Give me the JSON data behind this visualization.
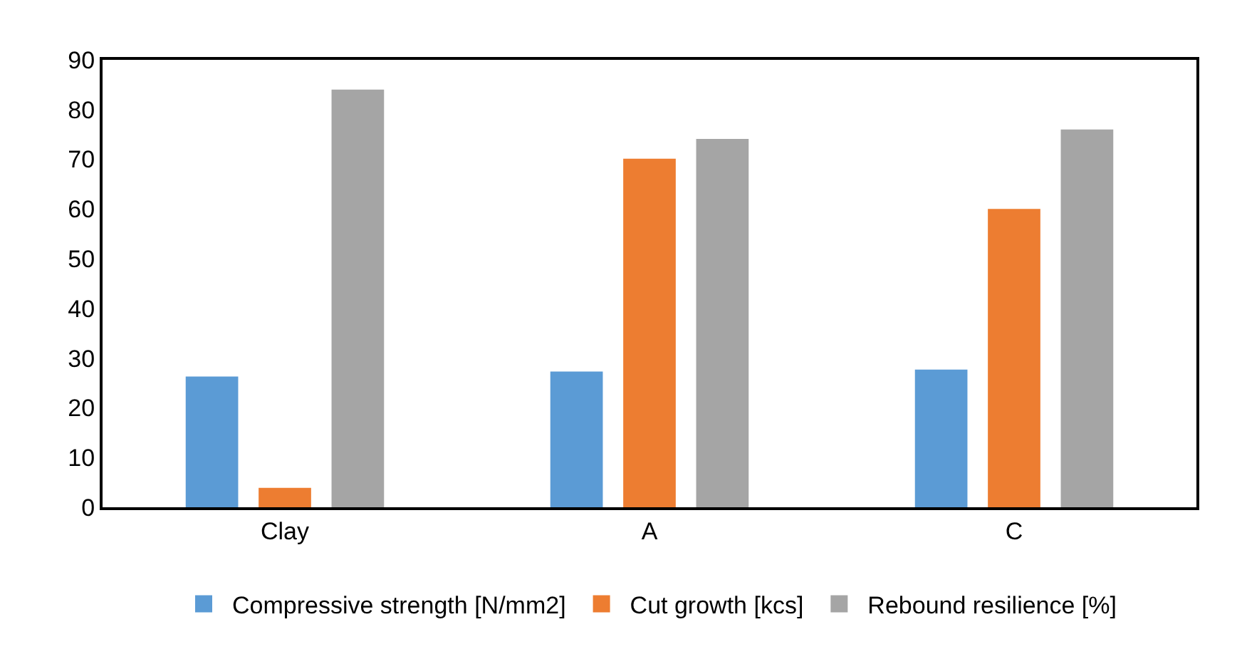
{
  "chart_data": {
    "type": "bar",
    "categories": [
      "Clay",
      "A",
      "C"
    ],
    "series": [
      {
        "name": "Compressive strength [N/mm2]",
        "color": "#5b9bd5",
        "values": [
          26.3,
          27.3,
          27.7
        ]
      },
      {
        "name": "Cut growth [kcs]",
        "color": "#ed7d31",
        "values": [
          3.9,
          70.1,
          60.0
        ]
      },
      {
        "name": "Rebound resilience [%]",
        "color": "#a5a5a5",
        "values": [
          84.0,
          74.1,
          76.0
        ]
      }
    ],
    "ylim": [
      0,
      90
    ],
    "yticks": [
      0,
      10,
      20,
      30,
      40,
      50,
      60,
      70,
      80,
      90
    ],
    "legend": "bottom"
  }
}
